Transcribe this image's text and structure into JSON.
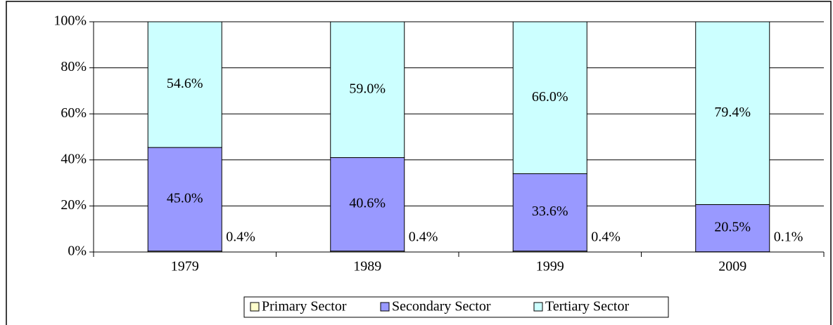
{
  "chart_data": {
    "type": "stacked_bar",
    "categories": [
      "1979",
      "1989",
      "1999",
      "2009"
    ],
    "series": [
      {
        "name": "Primary Sector",
        "color": "#ffffcc",
        "values": [
          0.4,
          0.4,
          0.4,
          0.1
        ],
        "value_labels": [
          "0.4%",
          "0.4%",
          "0.4%",
          "0.1%"
        ]
      },
      {
        "name": "Secondary Sector",
        "color": "#9999ff",
        "values": [
          45.0,
          40.6,
          33.6,
          20.5
        ],
        "value_labels": [
          "45.0%",
          "40.6%",
          "33.6%",
          "20.5%"
        ]
      },
      {
        "name": "Tertiary Sector",
        "color": "#ccffff",
        "values": [
          54.6,
          59.0,
          66.0,
          79.4
        ],
        "value_labels": [
          "54.6%",
          "59.0%",
          "66.0%",
          "79.4%"
        ]
      }
    ],
    "ylim": [
      0,
      100
    ],
    "yticks": [
      {
        "value": 0,
        "label": "0%"
      },
      {
        "value": 20,
        "label": "20%"
      },
      {
        "value": 40,
        "label": "40%"
      },
      {
        "value": 60,
        "label": "60%"
      },
      {
        "value": 80,
        "label": "80%"
      },
      {
        "value": 100,
        "label": "100%"
      }
    ],
    "grid": true,
    "legend": "bottom"
  }
}
